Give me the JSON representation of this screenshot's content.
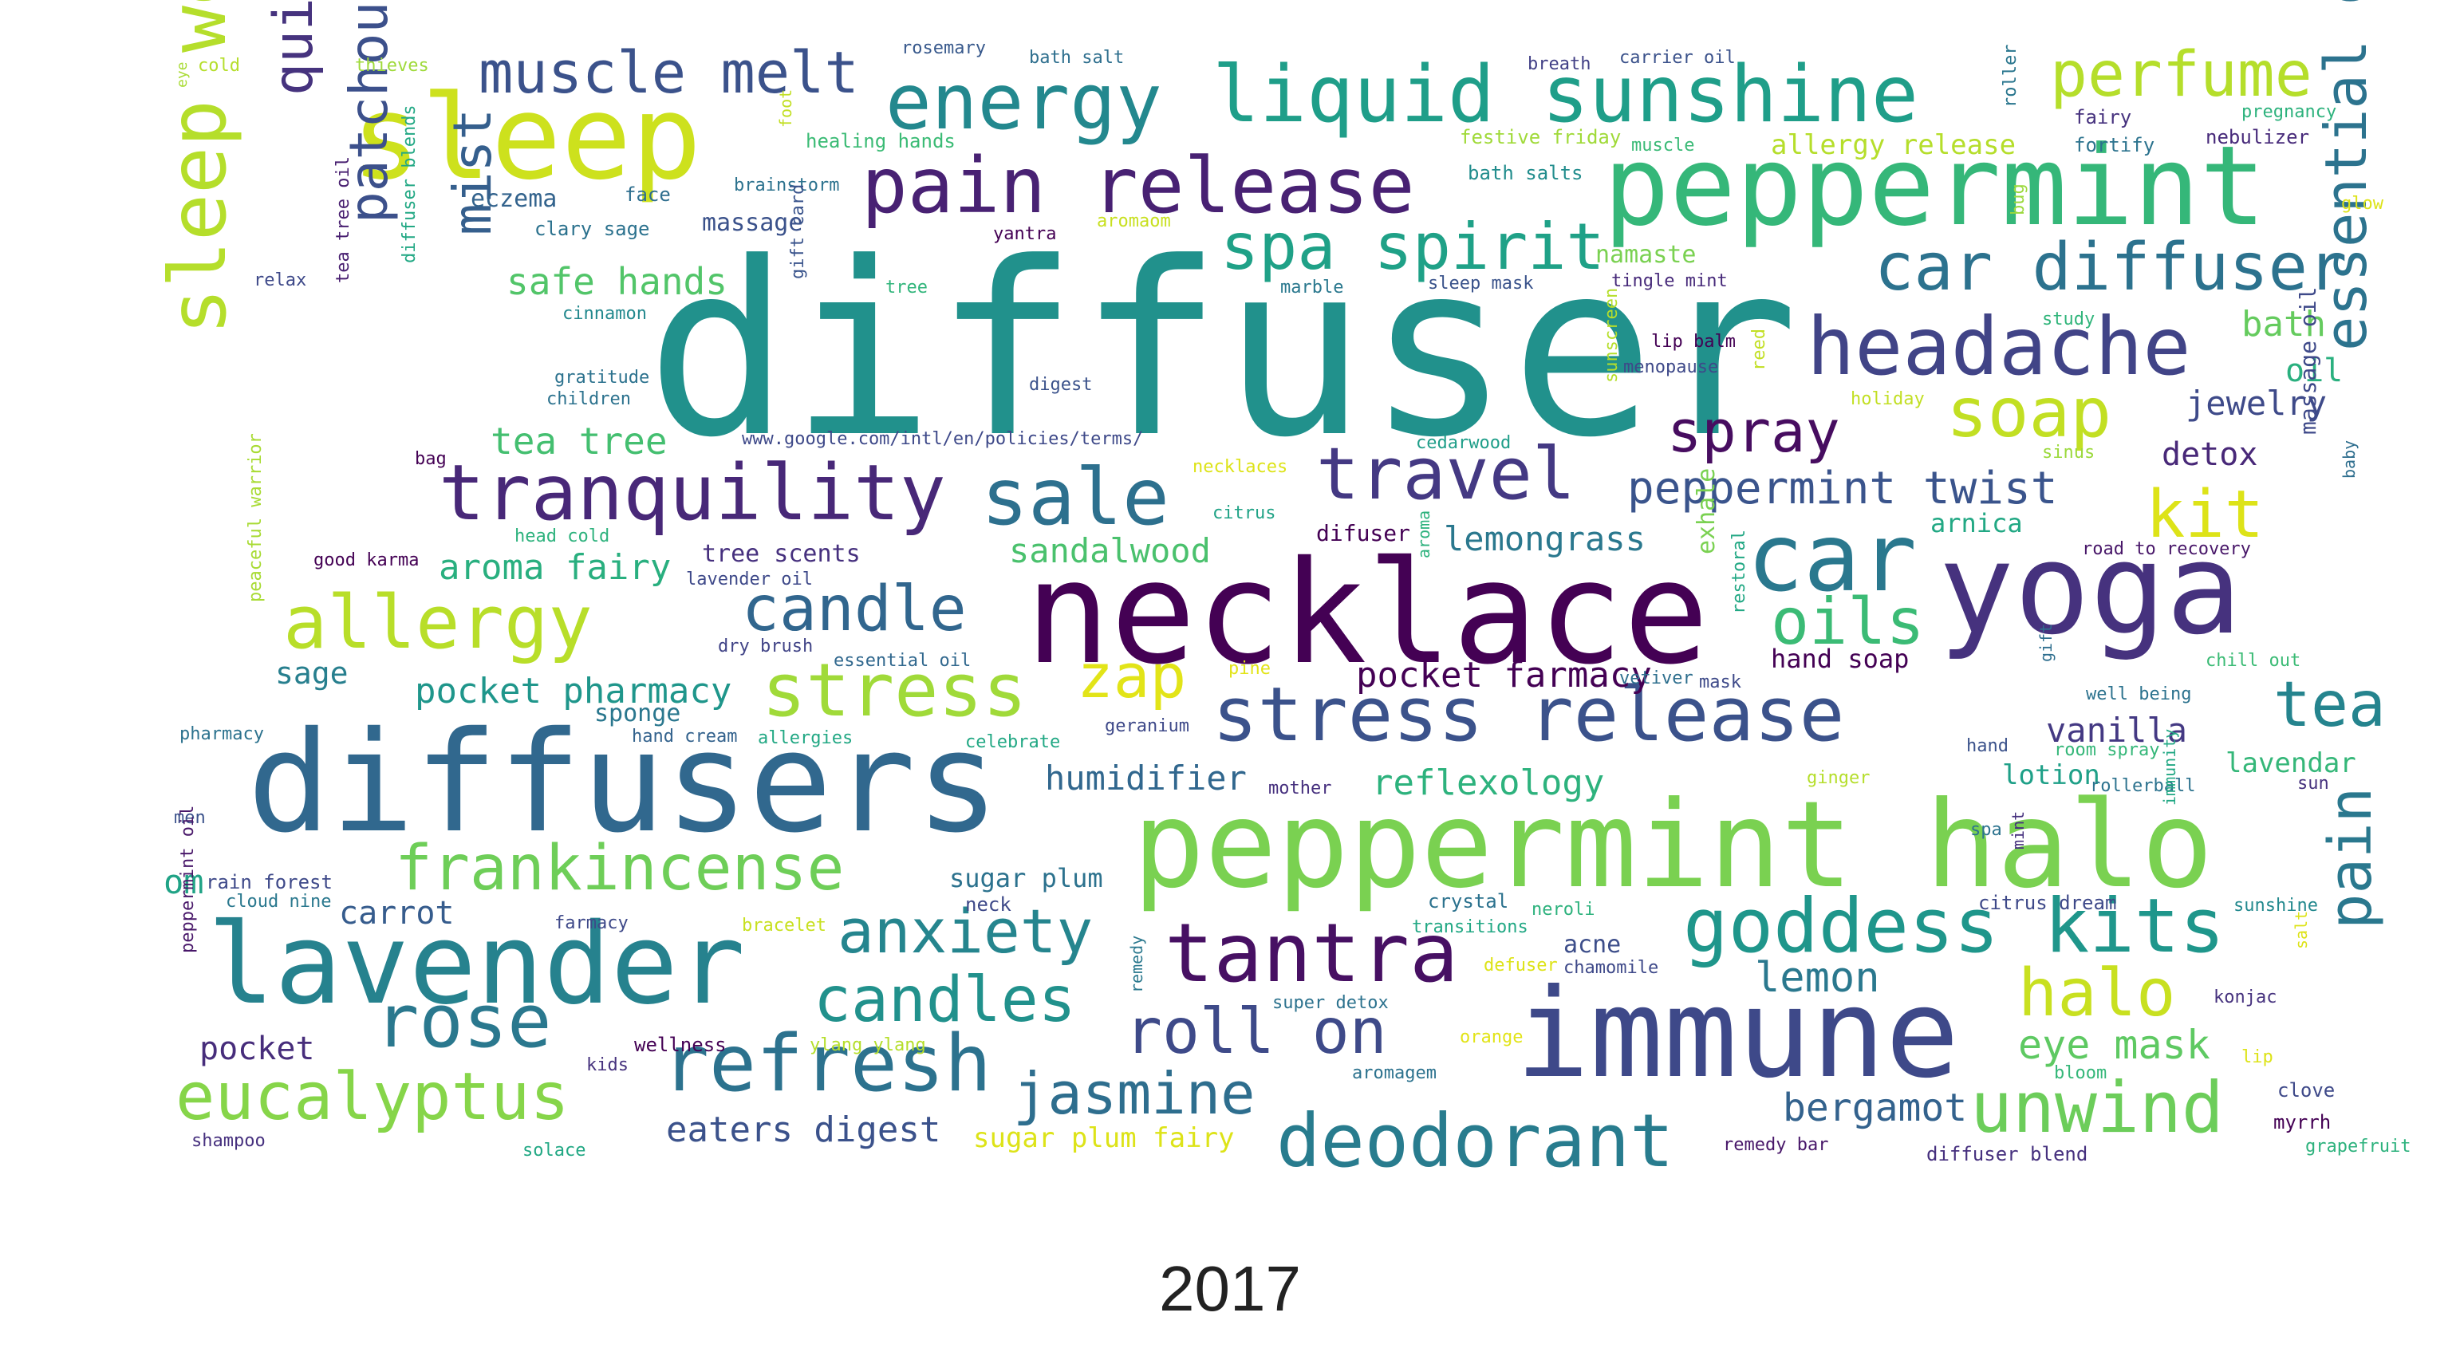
{
  "caption": "2017",
  "words": [
    {
      "text": "diffuser",
      "color": "#21918c"
    },
    {
      "text": "necklace",
      "color": "#440154"
    },
    {
      "text": "diffusers",
      "color": "#31688e"
    },
    {
      "text": "peppermint halo",
      "color": "#7ad151"
    },
    {
      "text": "peppermint",
      "color": "#35b779"
    },
    {
      "text": "yoga",
      "color": "#46327e"
    },
    {
      "text": "immune",
      "color": "#3e4989"
    },
    {
      "text": "lavender",
      "color": "#26828e"
    },
    {
      "text": "sleep",
      "color": "#cde11d"
    },
    {
      "text": "liquid sunshine",
      "color": "#1f9e89"
    },
    {
      "text": "energy",
      "color": "#23888e"
    },
    {
      "text": "sleep well",
      "color": "#b5de2b"
    },
    {
      "text": "pain release",
      "color": "#482173"
    },
    {
      "text": "headache",
      "color": "#414487"
    },
    {
      "text": "tranquility",
      "color": "#482878"
    },
    {
      "text": "stress release",
      "color": "#3b528b"
    },
    {
      "text": "car",
      "color": "#2a788e"
    },
    {
      "text": "perfume",
      "color": "#b5de2b"
    },
    {
      "text": "car diffuser",
      "color": "#2c728e"
    },
    {
      "text": "goddess kits",
      "color": "#1f968b"
    },
    {
      "text": "refresh",
      "color": "#2c728e"
    },
    {
      "text": "tantra",
      "color": "#471063"
    },
    {
      "text": "muscle melt",
      "color": "#3b528b"
    },
    {
      "text": "travel",
      "color": "#443983"
    },
    {
      "text": "spa spirit",
      "color": "#1fa187"
    },
    {
      "text": "sale",
      "color": "#2d708e"
    },
    {
      "text": "allergy",
      "color": "#b8de29"
    },
    {
      "text": "stress",
      "color": "#a0da39"
    },
    {
      "text": "eucalyptus",
      "color": "#86d549"
    },
    {
      "text": "rose",
      "color": "#2a788e"
    },
    {
      "text": "deodorant",
      "color": "#287c8e"
    },
    {
      "text": "unwind",
      "color": "#6ccd5a"
    },
    {
      "text": "frankincense",
      "color": "#6ece58"
    },
    {
      "text": "soap",
      "color": "#c2df23"
    },
    {
      "text": "spray",
      "color": "#470d60"
    },
    {
      "text": "essential oils",
      "color": "#2c738e"
    },
    {
      "text": "pain",
      "color": "#2a788e"
    },
    {
      "text": "oils",
      "color": "#3bbb75"
    },
    {
      "text": "candle",
      "color": "#31668e"
    },
    {
      "text": "candles",
      "color": "#21918c"
    },
    {
      "text": "anxiety",
      "color": "#25858e"
    },
    {
      "text": "jasmine",
      "color": "#2e6e8e"
    },
    {
      "text": "roll on",
      "color": "#3e4a89"
    },
    {
      "text": "halo",
      "color": "#c8e020"
    },
    {
      "text": "kit",
      "color": "#dde318"
    },
    {
      "text": "tea",
      "color": "#25848e"
    },
    {
      "text": "quick study",
      "color": "#46337e"
    },
    {
      "text": "patchouli",
      "color": "#3c508b"
    },
    {
      "text": "mist",
      "color": "#355f8d"
    },
    {
      "text": "zap",
      "color": "#e2e418"
    },
    {
      "text": "lemon",
      "color": "#2a788e"
    },
    {
      "text": "peppermint twist",
      "color": "#3a548c"
    },
    {
      "text": "bergamot",
      "color": "#33628d"
    },
    {
      "text": "eye mask",
      "color": "#5ec962"
    },
    {
      "text": "tea tree",
      "color": "#44bf70"
    },
    {
      "text": "safe hands",
      "color": "#52c569"
    },
    {
      "text": "pocket pharmacy",
      "color": "#1f968b"
    },
    {
      "text": "aroma fairy",
      "color": "#29af7f"
    },
    {
      "text": "pocket farmacy",
      "color": "#440154"
    },
    {
      "text": "humidifier",
      "color": "#31678e"
    },
    {
      "text": "reflexology",
      "color": "#2db27d"
    },
    {
      "text": "eaters digest",
      "color": "#3b528b"
    },
    {
      "text": "sugar plum fairy",
      "color": "#dde318"
    },
    {
      "text": "sandalwood",
      "color": "#4ac16d"
    },
    {
      "text": "lemongrass",
      "color": "#2a788e"
    },
    {
      "text": "bath",
      "color": "#65cb5e"
    },
    {
      "text": "jewelry",
      "color": "#3e4a89"
    },
    {
      "text": "detox",
      "color": "#482878"
    },
    {
      "text": "vanilla",
      "color": "#443983"
    },
    {
      "text": "lavendar",
      "color": "#35b779"
    },
    {
      "text": "lotion",
      "color": "#1fa088"
    },
    {
      "text": "carrot",
      "color": "#365c8d"
    },
    {
      "text": "pocket",
      "color": "#472d7b"
    },
    {
      "text": "sage",
      "color": "#277f8e"
    },
    {
      "text": "om",
      "color": "#20a386"
    },
    {
      "text": "sugar plum",
      "color": "#2c728e"
    },
    {
      "text": "oil",
      "color": "#2ab07f"
    },
    {
      "text": "eczema",
      "color": "#33638d"
    },
    {
      "text": "massage",
      "color": "#3b528b"
    },
    {
      "text": "namaste",
      "color": "#7ad151"
    },
    {
      "text": "allergy release",
      "color": "#b5de2b"
    },
    {
      "text": "tree scents",
      "color": "#46307e"
    },
    {
      "text": "hand soap",
      "color": "#440154"
    },
    {
      "text": "arnica",
      "color": "#22a884"
    },
    {
      "text": "acne",
      "color": "#3d4e8a"
    },
    {
      "text": "sponge",
      "color": "#2a778e"
    },
    {
      "text": "exhale",
      "color": "#7ad151"
    },
    {
      "text": "massage oil",
      "color": "#3e4989"
    },
    {
      "text": "cold",
      "color": "#b5de2b"
    },
    {
      "text": "thieves",
      "color": "#9fda3a"
    },
    {
      "text": "eye",
      "color": "#a8db34"
    },
    {
      "text": "rosemary",
      "color": "#38598c"
    },
    {
      "text": "bath salt",
      "color": "#2e6f8e"
    },
    {
      "text": "breath",
      "color": "#424086"
    },
    {
      "text": "carrier oil",
      "color": "#3b528b"
    },
    {
      "text": "roller",
      "color": "#2a768e"
    },
    {
      "text": "fairy",
      "color": "#46327e"
    },
    {
      "text": "pregnancy",
      "color": "#2db27d"
    },
    {
      "text": "festive friday",
      "color": "#a0da39"
    },
    {
      "text": "muscle",
      "color": "#3aba76"
    },
    {
      "text": "fortify",
      "color": "#2c738e"
    },
    {
      "text": "nebulizer",
      "color": "#472a7a"
    },
    {
      "text": "healing hands",
      "color": "#3bbb75"
    },
    {
      "text": "foot",
      "color": "#c2df23"
    },
    {
      "text": "bath salts",
      "color": "#228d8d"
    },
    {
      "text": "glow",
      "color": "#dde318"
    },
    {
      "text": "brainstorm",
      "color": "#2c728e"
    },
    {
      "text": "face",
      "color": "#2e6e8e"
    },
    {
      "text": "clary sage",
      "color": "#2c728e"
    },
    {
      "text": "yantra",
      "color": "#440154"
    },
    {
      "text": "aromaom",
      "color": "#c8e020"
    },
    {
      "text": "bug",
      "color": "#9bd93c"
    },
    {
      "text": "relax",
      "color": "#3e4989"
    },
    {
      "text": "tree",
      "color": "#31b57b"
    },
    {
      "text": "marble",
      "color": "#2a788e"
    },
    {
      "text": "sleep mask",
      "color": "#3a538b"
    },
    {
      "text": "tingle mint",
      "color": "#472a7a"
    },
    {
      "text": "study",
      "color": "#31b57b"
    },
    {
      "text": "gift card",
      "color": "#3a548c"
    },
    {
      "text": "cinnamon",
      "color": "#23898e"
    },
    {
      "text": "tea tree oil",
      "color": "#481f70"
    },
    {
      "text": "diffuser blends",
      "color": "#22a884"
    },
    {
      "text": "gratitude",
      "color": "#2c728e"
    },
    {
      "text": "children",
      "color": "#2c728e"
    },
    {
      "text": "digest",
      "color": "#3b528b"
    },
    {
      "text": "lip balm",
      "color": "#440154"
    },
    {
      "text": "menopause",
      "color": "#3e4989"
    },
    {
      "text": "reed",
      "color": "#c2df23"
    },
    {
      "text": "holiday",
      "color": "#c2df23"
    },
    {
      "text": "sunscreen",
      "color": "#b5de2b"
    },
    {
      "text": "www.google.com/intl/en/policies/terms/",
      "color": "#3e4989"
    },
    {
      "text": "cedarwood",
      "color": "#1f9e89"
    },
    {
      "text": "sinus",
      "color": "#9bd93c"
    },
    {
      "text": "baby",
      "color": "#2e6e8e"
    },
    {
      "text": "bag",
      "color": "#440154"
    },
    {
      "text": "necklaces",
      "color": "#dde318"
    },
    {
      "text": "citrus",
      "color": "#20a386"
    },
    {
      "text": "difuser",
      "color": "#440154"
    },
    {
      "text": "aroma",
      "color": "#2db27d"
    },
    {
      "text": "road to recovery",
      "color": "#481769"
    },
    {
      "text": "head cold",
      "color": "#2db27d"
    },
    {
      "text": "good karma",
      "color": "#440154"
    },
    {
      "text": "lavender oil",
      "color": "#3e4989"
    },
    {
      "text": "restoral",
      "color": "#22a884"
    },
    {
      "text": "peaceful warrior",
      "color": "#a8db34"
    },
    {
      "text": "dry brush",
      "color": "#414487"
    },
    {
      "text": "essential oil",
      "color": "#31688e"
    },
    {
      "text": "pine",
      "color": "#e2e418"
    },
    {
      "text": "vetiver",
      "color": "#2e6f8e"
    },
    {
      "text": "mask",
      "color": "#3e4a89"
    },
    {
      "text": "chill out",
      "color": "#3bbb75"
    },
    {
      "text": "gift",
      "color": "#2e6e8e"
    },
    {
      "text": "well being",
      "color": "#2c728e"
    },
    {
      "text": "pharmacy",
      "color": "#2c728e"
    },
    {
      "text": "hand cream",
      "color": "#33628d"
    },
    {
      "text": "allergies",
      "color": "#22a884"
    },
    {
      "text": "celebrate",
      "color": "#22a884"
    },
    {
      "text": "geranium",
      "color": "#3e4989"
    },
    {
      "text": "hand",
      "color": "#3b528b"
    },
    {
      "text": "room spray",
      "color": "#35b779"
    },
    {
      "text": "ginger",
      "color": "#b5de2b"
    },
    {
      "text": "mother",
      "color": "#46307e"
    },
    {
      "text": "rollerball",
      "color": "#2c728e"
    },
    {
      "text": "sun",
      "color": "#46327e"
    },
    {
      "text": "men",
      "color": "#3b528b"
    },
    {
      "text": "spa",
      "color": "#2c738e"
    },
    {
      "text": "mint",
      "color": "#46307e"
    },
    {
      "text": "immunity",
      "color": "#22a884"
    },
    {
      "text": "rain forest",
      "color": "#3e4989"
    },
    {
      "text": "cloud nine",
      "color": "#2a788e"
    },
    {
      "text": "neck",
      "color": "#3e4989"
    },
    {
      "text": "crystal",
      "color": "#2c728e"
    },
    {
      "text": "citrus dream",
      "color": "#3e4989"
    },
    {
      "text": "sunshine",
      "color": "#23898e"
    },
    {
      "text": "peppermint oil",
      "color": "#481769"
    },
    {
      "text": "farmacy",
      "color": "#3e4989"
    },
    {
      "text": "bracelet",
      "color": "#c8e020"
    },
    {
      "text": "transitions",
      "color": "#22a884"
    },
    {
      "text": "neroli",
      "color": "#2db27d"
    },
    {
      "text": "salt",
      "color": "#dde318"
    },
    {
      "text": "defuser",
      "color": "#dde318"
    },
    {
      "text": "chamomile",
      "color": "#3e4989"
    },
    {
      "text": "remedy",
      "color": "#2a788e"
    },
    {
      "text": "super detox",
      "color": "#2c728e"
    },
    {
      "text": "konjac",
      "color": "#46327e"
    },
    {
      "text": "kids",
      "color": "#46327e"
    },
    {
      "text": "wellness",
      "color": "#440154"
    },
    {
      "text": "ylang ylang",
      "color": "#b5de2b"
    },
    {
      "text": "orange",
      "color": "#e2e418"
    },
    {
      "text": "aromagem",
      "color": "#2c728e"
    },
    {
      "text": "lip",
      "color": "#dde318"
    },
    {
      "text": "bloom",
      "color": "#35b779"
    },
    {
      "text": "clove",
      "color": "#3e4989"
    },
    {
      "text": "myrrh",
      "color": "#440154"
    },
    {
      "text": "shampoo",
      "color": "#46307e"
    },
    {
      "text": "solace",
      "color": "#22a884"
    },
    {
      "text": "remedy bar",
      "color": "#481769"
    },
    {
      "text": "diffuser blend",
      "color": "#46307e"
    },
    {
      "text": "grapefruit",
      "color": "#2db27d"
    }
  ]
}
